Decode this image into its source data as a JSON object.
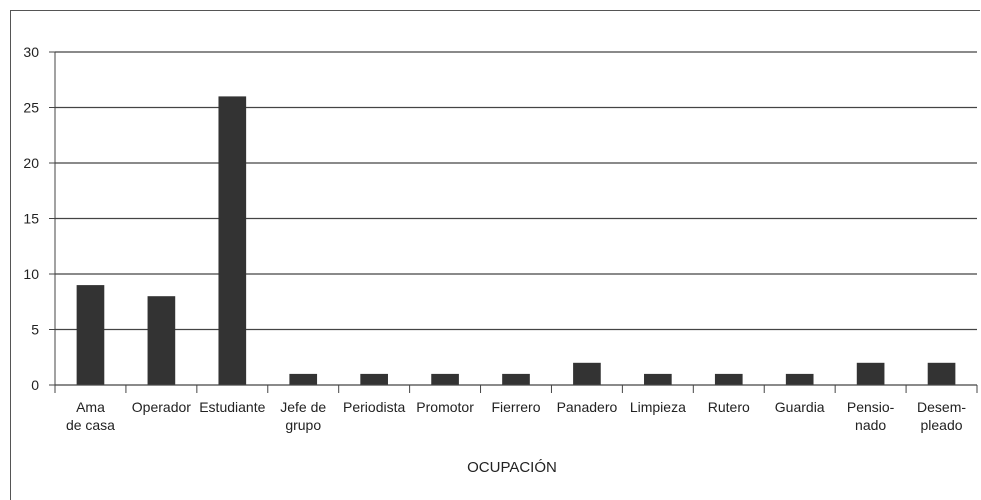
{
  "chart_data": {
    "type": "bar",
    "categories": [
      [
        "Ama",
        "de casa"
      ],
      [
        "Operador"
      ],
      [
        "Estudiante"
      ],
      [
        "Jefe de",
        "grupo"
      ],
      [
        "Periodista"
      ],
      [
        "Promotor"
      ],
      [
        "Fierrero"
      ],
      [
        "Panadero"
      ],
      [
        "Limpieza"
      ],
      [
        "Rutero"
      ],
      [
        "Guardia"
      ],
      [
        "Pensio-",
        "nado"
      ],
      [
        "Desem-",
        "pleado"
      ]
    ],
    "values": [
      9,
      8,
      26,
      1,
      1,
      1,
      1,
      2,
      1,
      1,
      1,
      2,
      2
    ],
    "title": "",
    "xlabel": "OCUPACIÓN",
    "ylabel": "",
    "ylim": [
      0,
      30
    ],
    "yticks": [
      0,
      5,
      10,
      15,
      20,
      25,
      30
    ],
    "grid": true,
    "colors": {
      "bar": "#333333",
      "grid": "#444444",
      "axis": "#444444"
    }
  }
}
